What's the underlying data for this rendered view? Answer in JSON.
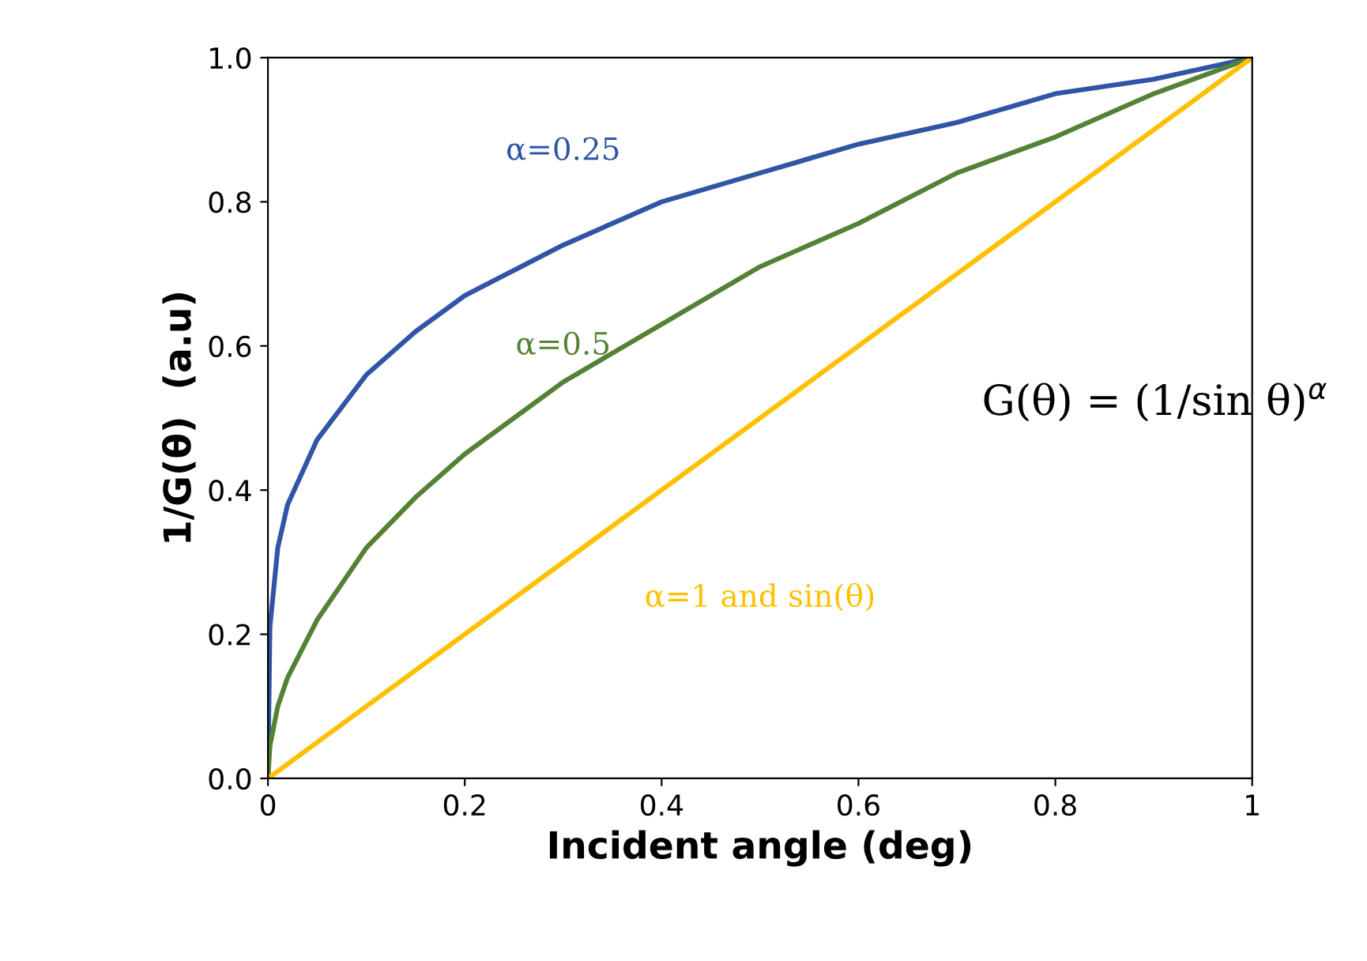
{
  "chart_data": {
    "type": "line",
    "xlabel": "Incident angle (deg)",
    "ylabel": "1/G(θ)  (a.u)",
    "xlim": [
      0,
      1
    ],
    "ylim": [
      0,
      1
    ],
    "xticks": [
      0,
      {
        "value": 0.2,
        "label": "0.2"
      },
      {
        "value": 0.4,
        "label": "0.4"
      },
      {
        "value": 0.6,
        "label": "0.6"
      },
      {
        "value": 0.8,
        "label": "0.8"
      },
      1
    ],
    "yticks": [
      {
        "value": 0,
        "label": "0.0"
      },
      {
        "value": 0.2,
        "label": "0.2"
      },
      {
        "value": 0.4,
        "label": "0.4"
      },
      {
        "value": 0.6,
        "label": "0.6"
      },
      {
        "value": 0.8,
        "label": "0.8"
      },
      {
        "value": 1,
        "label": "1.0"
      }
    ],
    "grid": false,
    "legend": false,
    "marker": "none",
    "line_style": "solid",
    "series": [
      {
        "name": "α=0.25",
        "color": "#2f55a4",
        "x": [
          0,
          0.002,
          0.01,
          0.02,
          0.05,
          0.1,
          0.15,
          0.2,
          0.3,
          0.4,
          0.5,
          0.6,
          0.7,
          0.8,
          0.9,
          1
        ],
        "values": [
          0,
          0.21,
          0.32,
          0.38,
          0.47,
          0.56,
          0.62,
          0.67,
          0.74,
          0.8,
          0.84,
          0.88,
          0.91,
          0.95,
          0.97,
          1
        ]
      },
      {
        "name": "α=0.5",
        "color": "#548235",
        "x": [
          0,
          0.002,
          0.01,
          0.02,
          0.05,
          0.1,
          0.15,
          0.2,
          0.3,
          0.4,
          0.5,
          0.6,
          0.7,
          0.8,
          0.9,
          1
        ],
        "values": [
          0,
          0.045,
          0.1,
          0.14,
          0.22,
          0.32,
          0.39,
          0.45,
          0.55,
          0.63,
          0.71,
          0.77,
          0.84,
          0.89,
          0.95,
          1
        ]
      },
      {
        "name": "α=1 and sin(θ)",
        "color": "#ffc000",
        "x": [
          0,
          1
        ],
        "values": [
          0,
          1
        ]
      }
    ],
    "annotations": [
      "G(θ) = (1/sin θ)$^{α}$"
    ]
  }
}
